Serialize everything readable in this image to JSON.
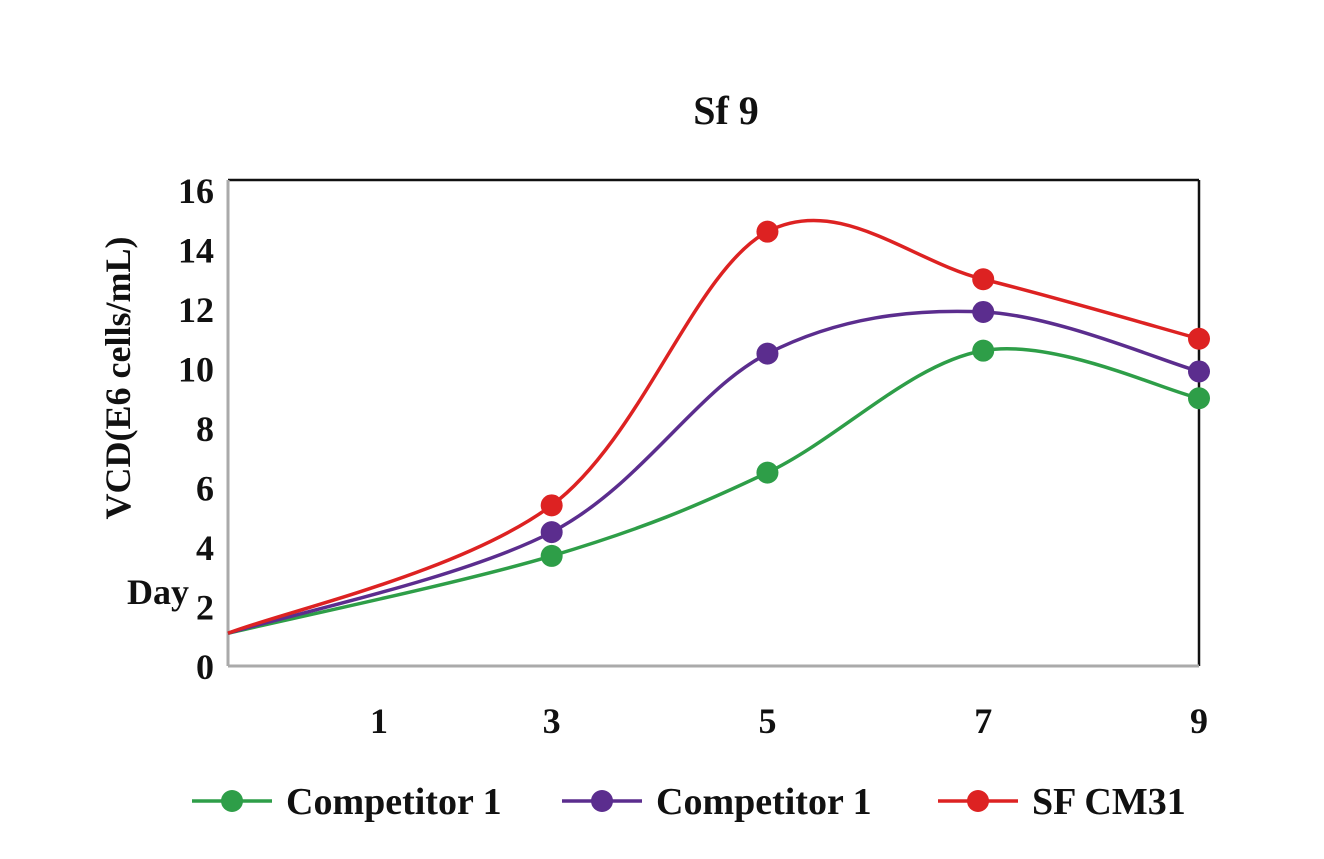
{
  "chart_data": {
    "type": "line",
    "title": "Sf 9",
    "xlabel": "Day",
    "ylabel": "VCD(E6 cells/mL)",
    "xlim": [
      0,
      9
    ],
    "ylim": [
      0,
      16
    ],
    "yticks": [
      "0",
      "2",
      "4",
      "6",
      "8",
      "10",
      "12",
      "14",
      "16"
    ],
    "xticks": [
      {
        "label": "1",
        "at": 1.4
      },
      {
        "label": "3",
        "at": 3
      },
      {
        "label": "5",
        "at": 5
      },
      {
        "label": "7",
        "at": 7
      },
      {
        "label": "9",
        "at": 9
      }
    ],
    "x": [
      0,
      3,
      5,
      7,
      9
    ],
    "series": [
      {
        "name": "Competitor 1",
        "color": "#2e9e48",
        "values": [
          1.1,
          3.7,
          6.5,
          10.6,
          9.0
        ]
      },
      {
        "name": "Competitor 1",
        "color": "#5b2d8e",
        "values": [
          1.1,
          4.5,
          10.5,
          11.9,
          9.9
        ]
      },
      {
        "name": "SF CM31",
        "color": "#dd2222",
        "values": [
          1.1,
          5.4,
          14.6,
          13.0,
          11.0
        ]
      }
    ],
    "grid": false,
    "legend_position": "bottom"
  }
}
